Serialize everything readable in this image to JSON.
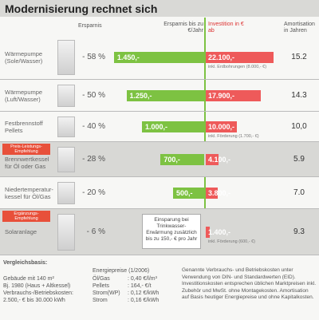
{
  "chart_data": {
    "type": "diverging-bar",
    "title": "Modernisierung rechnet sich",
    "percent_header": "Ersparnis",
    "amortisation_header": "Amortisation in Jahren",
    "categories": [
      "Wärmepumpe (Sole/Wasser)",
      "Wärmepumpe (Luft/Wasser)",
      "Festbrennstoff Pellets",
      "Brennwertkessel für Öl oder Gas",
      "Niedertemperatur-kessel für Öl/Gas",
      "Solaranlage"
    ],
    "tags": [
      null,
      null,
      null,
      "Preis-Leistungs-Empfehlung",
      null,
      "Ergänzungs-Empfehlung"
    ],
    "percent": {
      "values": [
        -58,
        -50,
        -40,
        -28,
        -20,
        -6
      ],
      "value_labels": [
        "- 58 %",
        "- 50 %",
        "- 40 %",
        "- 28 %",
        "- 20 %",
        "- 6 %"
      ]
    },
    "series": [
      {
        "name": "Ersparnis bis zu €/Jahr",
        "color": "#7dc242",
        "values": [
          1450,
          1250,
          1000,
          700,
          500,
          null
        ],
        "value_labels": [
          "1.450,-",
          "1.250,-",
          "1.000,-",
          "700,-",
          "500,-",
          null
        ]
      },
      {
        "name": "Investition in € ab",
        "color": "#ee5a5a",
        "values": [
          22100,
          17900,
          10000,
          4100,
          3800,
          1400
        ],
        "value_labels": [
          "22.100,-",
          "17.900,-",
          "10.000,-",
          "4.100,-",
          "3.800,-",
          "1.400,-"
        ]
      }
    ],
    "notes": [
      "inkl. Erdbohrungen (8.000,- €)",
      null,
      "inkl. Förderung (1.700,- €)",
      null,
      null,
      "inkl. Förderung (600,- €)"
    ],
    "savings_note": "Einsparung bei Trinkwasser-Erwärmung zusätzlich bis zu 150,- € pro Jahr",
    "amortisation": {
      "values": [
        15.2,
        14.3,
        10.0,
        5.9,
        7.0,
        9.3
      ],
      "value_labels": [
        "15.2",
        "14.3",
        "10,0",
        "5.9",
        "7.0",
        "9.3"
      ]
    },
    "footer": {
      "basis_title": "Vergleichsbasis:",
      "basis": [
        "Gebäude mit 140 m²",
        "Bj. 1980 (Haus + Altkessel)",
        "Verbrauchs-/Betriebskosten:",
        "2.500,- € bis 30.000 kWh"
      ],
      "prices_title": "Energiepreise (1/2006)",
      "prices": [
        [
          "Öl/Gas",
          ": 0,40 €/l/m³"
        ],
        [
          "Pellets",
          ": 164,- €/t"
        ],
        [
          "Strom(WP)",
          ": 0,12 €/kWh"
        ],
        [
          "Strom",
          ": 0,16 €/kWh"
        ]
      ],
      "disclaimer": "Genannte Verbrauchs- und Betriebskosten unter Verwendung von DIN- und Standardwerten (EID). Investitionskosten entsprechen üblichen Marktpreisen inkl. Zubehör und MwSt. ohne Montagekosten. Amortisation auf Basis heutiger Energiepreise und ohne Kapitalkosten."
    }
  }
}
